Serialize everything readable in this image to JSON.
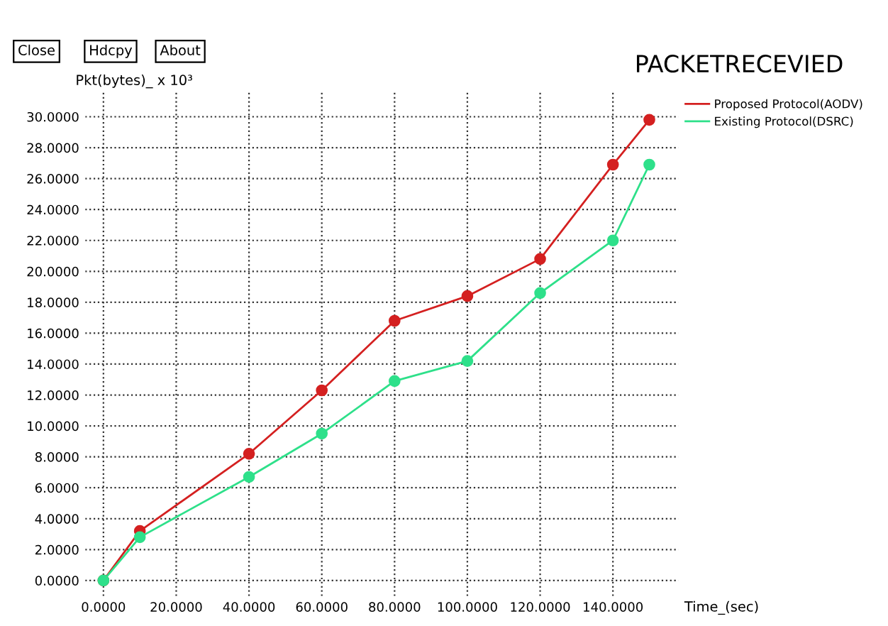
{
  "chart_data": {
    "type": "line",
    "title": "PACKETRECEVIED",
    "ylabel": "Pkt(bytes)_ x 10³",
    "xlabel": "Time_(sec)",
    "annotations": [
      "Close",
      "Hdcpy",
      "About"
    ],
    "x": [
      0,
      10,
      40,
      60,
      80,
      100,
      120,
      140,
      150
    ],
    "series": [
      {
        "name": "Proposed Protocol(AODV)",
        "color": "#d42020",
        "values": [
          0,
          3.2,
          8.2,
          12.3,
          16.8,
          18.4,
          20.8,
          26.9,
          29.8
        ]
      },
      {
        "name": "Existing Protocol(DSRC)",
        "color": "#2ee08a",
        "values": [
          0,
          2.8,
          6.7,
          9.5,
          12.9,
          14.2,
          18.6,
          22.0,
          26.9
        ]
      }
    ],
    "xlim": [
      -5,
      158
    ],
    "ylim": [
      -1,
      31.6
    ],
    "xticks": [
      {
        "value": 0,
        "label": "0.0000"
      },
      {
        "value": 20,
        "label": "20.0000"
      },
      {
        "value": 40,
        "label": "40.0000"
      },
      {
        "value": 60,
        "label": "60.0000"
      },
      {
        "value": 80,
        "label": "80.0000"
      },
      {
        "value": 100,
        "label": "100.0000"
      },
      {
        "value": 120,
        "label": "120.0000"
      },
      {
        "value": 140,
        "label": "140.0000"
      }
    ],
    "yticks": [
      {
        "value": 0,
        "label": "0.0000"
      },
      {
        "value": 2,
        "label": "2.0000"
      },
      {
        "value": 4,
        "label": "4.0000"
      },
      {
        "value": 6,
        "label": "6.0000"
      },
      {
        "value": 8,
        "label": "8.0000"
      },
      {
        "value": 10,
        "label": "10.0000"
      },
      {
        "value": 12,
        "label": "12.0000"
      },
      {
        "value": 14,
        "label": "14.0000"
      },
      {
        "value": 16,
        "label": "16.0000"
      },
      {
        "value": 18,
        "label": "18.0000"
      },
      {
        "value": 20,
        "label": "20.0000"
      },
      {
        "value": 22,
        "label": "22.0000"
      },
      {
        "value": 24,
        "label": "24.0000"
      },
      {
        "value": 26,
        "label": "26.0000"
      },
      {
        "value": 28,
        "label": "28.0000"
      },
      {
        "value": 30,
        "label": "30.0000"
      }
    ],
    "grid": true,
    "legend": "top right",
    "marker": "circle",
    "line_style": "solid"
  }
}
